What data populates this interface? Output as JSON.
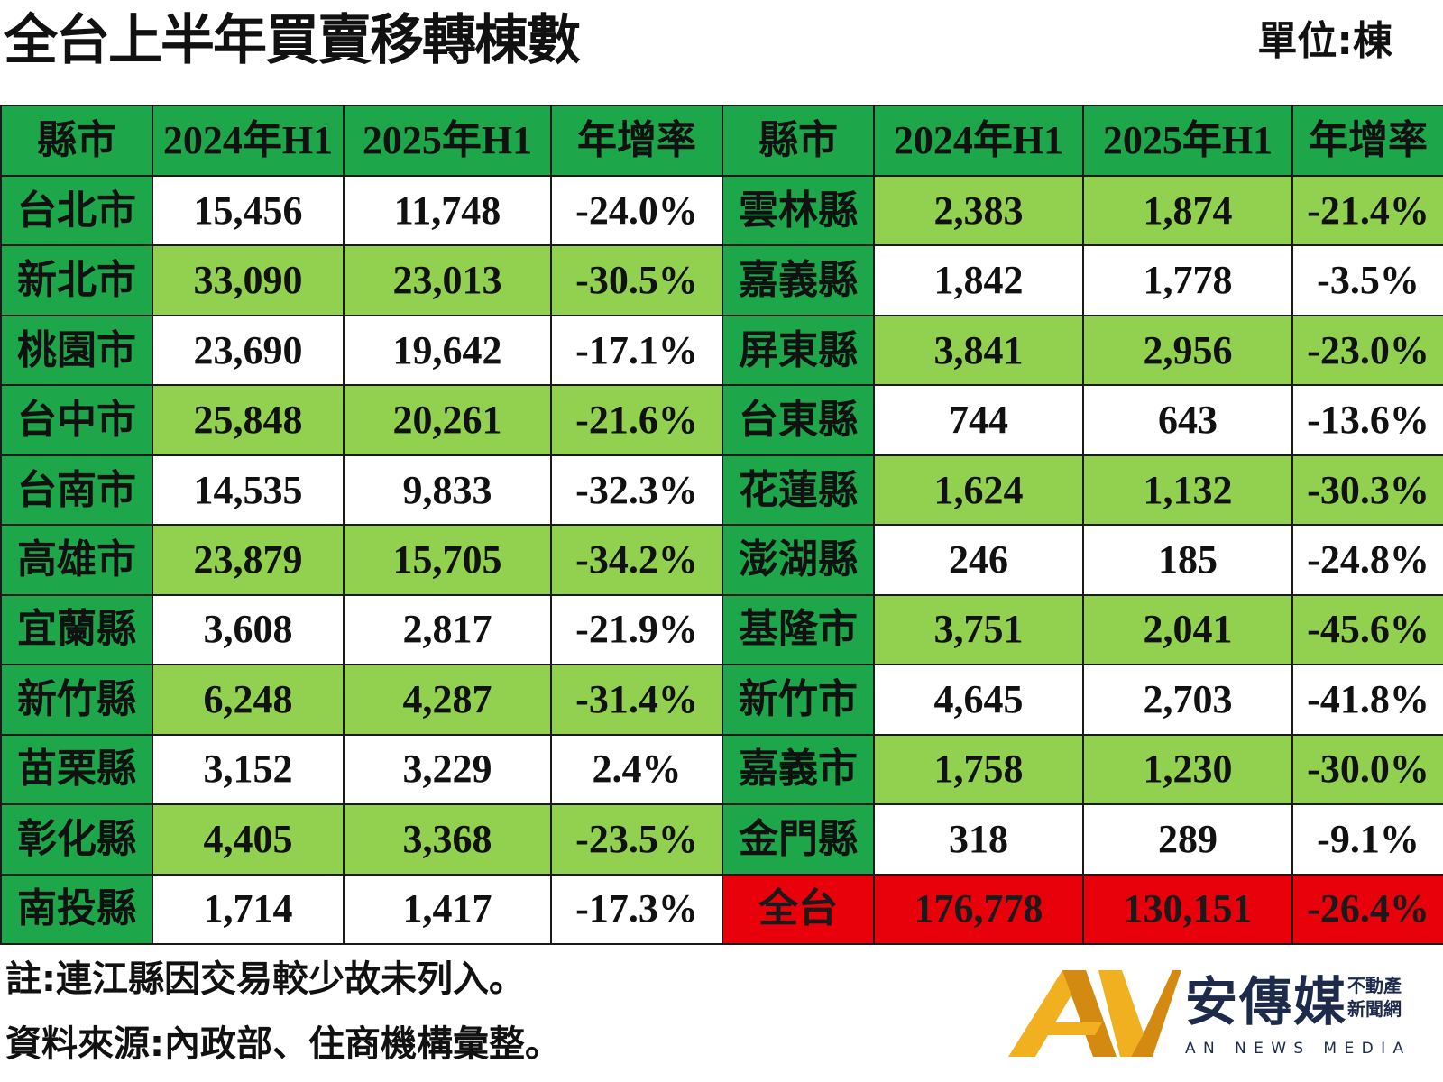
{
  "title": "全台上半年買賣移轉棟數",
  "unit": "單位:棟",
  "table": {
    "headers": [
      "縣市",
      "2024年H1",
      "2025年H1",
      "年增率",
      "縣市",
      "2024年H1",
      "2025年H1",
      "年增率"
    ],
    "rows": [
      {
        "left": {
          "region": "台北市",
          "h1_2024": "15,456",
          "h1_2025": "11,748",
          "growth": "-24.0%"
        },
        "right": {
          "region": "雲林縣",
          "h1_2024": "2,383",
          "h1_2025": "1,874",
          "growth": "-21.4%"
        }
      },
      {
        "left": {
          "region": "新北市",
          "h1_2024": "33,090",
          "h1_2025": "23,013",
          "growth": "-30.5%"
        },
        "right": {
          "region": "嘉義縣",
          "h1_2024": "1,842",
          "h1_2025": "1,778",
          "growth": "-3.5%"
        }
      },
      {
        "left": {
          "region": "桃園市",
          "h1_2024": "23,690",
          "h1_2025": "19,642",
          "growth": "-17.1%"
        },
        "right": {
          "region": "屏東縣",
          "h1_2024": "3,841",
          "h1_2025": "2,956",
          "growth": "-23.0%"
        }
      },
      {
        "left": {
          "region": "台中市",
          "h1_2024": "25,848",
          "h1_2025": "20,261",
          "growth": "-21.6%"
        },
        "right": {
          "region": "台東縣",
          "h1_2024": "744",
          "h1_2025": "643",
          "growth": "-13.6%"
        }
      },
      {
        "left": {
          "region": "台南市",
          "h1_2024": "14,535",
          "h1_2025": "9,833",
          "growth": "-32.3%"
        },
        "right": {
          "region": "花蓮縣",
          "h1_2024": "1,624",
          "h1_2025": "1,132",
          "growth": "-30.3%"
        }
      },
      {
        "left": {
          "region": "高雄市",
          "h1_2024": "23,879",
          "h1_2025": "15,705",
          "growth": "-34.2%"
        },
        "right": {
          "region": "澎湖縣",
          "h1_2024": "246",
          "h1_2025": "185",
          "growth": "-24.8%"
        }
      },
      {
        "left": {
          "region": "宜蘭縣",
          "h1_2024": "3,608",
          "h1_2025": "2,817",
          "growth": "-21.9%"
        },
        "right": {
          "region": "基隆市",
          "h1_2024": "3,751",
          "h1_2025": "2,041",
          "growth": "-45.6%"
        }
      },
      {
        "left": {
          "region": "新竹縣",
          "h1_2024": "6,248",
          "h1_2025": "4,287",
          "growth": "-31.4%"
        },
        "right": {
          "region": "新竹市",
          "h1_2024": "4,645",
          "h1_2025": "2,703",
          "growth": "-41.8%"
        }
      },
      {
        "left": {
          "region": "苗栗縣",
          "h1_2024": "3,152",
          "h1_2025": "3,229",
          "growth": "2.4%"
        },
        "right": {
          "region": "嘉義市",
          "h1_2024": "1,758",
          "h1_2025": "1,230",
          "growth": "-30.0%"
        }
      },
      {
        "left": {
          "region": "彰化縣",
          "h1_2024": "4,405",
          "h1_2025": "3,368",
          "growth": "-23.5%"
        },
        "right": {
          "region": "金門縣",
          "h1_2024": "318",
          "h1_2025": "289",
          "growth": "-9.1%"
        }
      },
      {
        "left": {
          "region": "南投縣",
          "h1_2024": "1,714",
          "h1_2025": "1,417",
          "growth": "-17.3%"
        },
        "right": {
          "region": "全台",
          "h1_2024": "176,778",
          "h1_2025": "130,151",
          "growth": "-26.4%"
        }
      }
    ]
  },
  "notes": {
    "note": "註:連江縣因交易較少故未列入。",
    "source": "資料來源:內政部、住商機構彙整。"
  },
  "logo": {
    "name": "安傳媒",
    "sub_line1": "不動產",
    "sub_line2": "新聞網",
    "english": "AN NEWS MEDIA"
  },
  "colors": {
    "header_green": "#1da64a",
    "light_green": "#92d050",
    "total_red": "#e8000b",
    "logo_gold": "#f0b020",
    "logo_navy": "#1d2a4a"
  }
}
